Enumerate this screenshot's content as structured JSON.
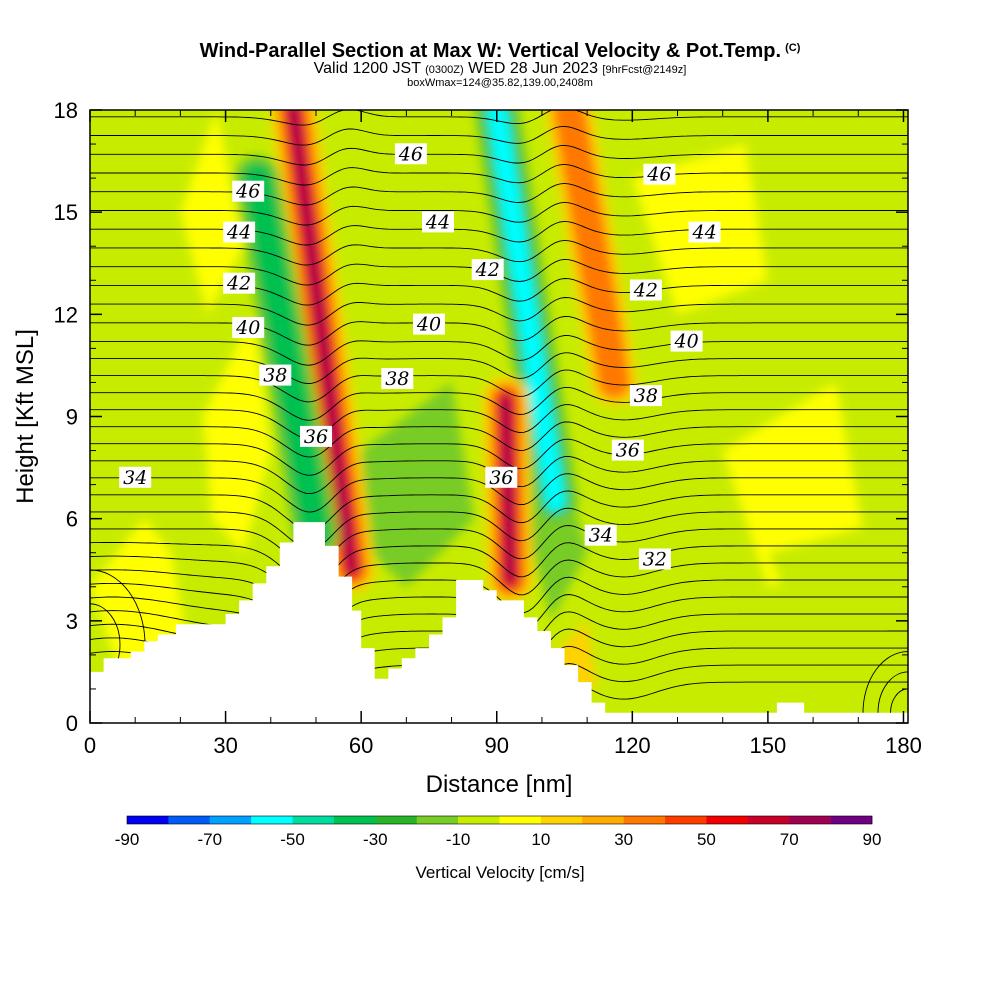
{
  "header": {
    "title": "Wind-Parallel Section at Max W: Vertical Velocity & Pot.Temp.",
    "copyright": "(C)",
    "valid_main": "Valid 1200 JST",
    "valid_utc": "(0300Z)",
    "valid_date": "WED 28 Jun 2023",
    "valid_fcst": "[9hrFcst@2149z]",
    "box_line": "boxWmax=124@35.82,139.00,2408m"
  },
  "chart_data": {
    "type": "heatmap",
    "title": "Wind-Parallel Section at Max W: Vertical Velocity & Pot.Temp.",
    "xlabel": "Distance [nm]",
    "ylabel": "Height [Kft MSL]",
    "xlim": [
      0,
      181
    ],
    "ylim": [
      0,
      18
    ],
    "x_ticks": [
      "0",
      "30",
      "60",
      "90",
      "120",
      "150",
      "180"
    ],
    "y_ticks": [
      "0",
      "3",
      "6",
      "9",
      "12",
      "15",
      "18"
    ],
    "colorbar": {
      "label": "Vertical Velocity [cm/s]",
      "tick_labels": [
        "-90",
        "-70",
        "-50",
        "-30",
        "-10",
        "10",
        "30",
        "50",
        "70",
        "90"
      ],
      "colors": [
        "#0000f0",
        "#005af5",
        "#00a0ff",
        "#00ffff",
        "#00dca0",
        "#00c050",
        "#28b428",
        "#78cc28",
        "#c8ec00",
        "#ffff00",
        "#ffd200",
        "#ffaa00",
        "#ff7800",
        "#ff3c00",
        "#f00000",
        "#c80028",
        "#a00050",
        "#6e0082"
      ]
    },
    "terrain_kft": [
      [
        0,
        1.5
      ],
      [
        3,
        1.5
      ],
      [
        3,
        1.9
      ],
      [
        9,
        1.9
      ],
      [
        9,
        2.1
      ],
      [
        12,
        2.1
      ],
      [
        12,
        2.4
      ],
      [
        15,
        2.4
      ],
      [
        15,
        2.6
      ],
      [
        19,
        2.6
      ],
      [
        19,
        2.9
      ],
      [
        30,
        2.9
      ],
      [
        30,
        3.2
      ],
      [
        33,
        3.2
      ],
      [
        33,
        3.6
      ],
      [
        36,
        3.6
      ],
      [
        36,
        4.1
      ],
      [
        39,
        4.1
      ],
      [
        39,
        4.6
      ],
      [
        42,
        4.6
      ],
      [
        42,
        5.3
      ],
      [
        45,
        5.3
      ],
      [
        45,
        5.9
      ],
      [
        52,
        5.9
      ],
      [
        52,
        5.2
      ],
      [
        55,
        5.2
      ],
      [
        55,
        4.3
      ],
      [
        58,
        4.3
      ],
      [
        58,
        3.3
      ],
      [
        60,
        3.3
      ],
      [
        60,
        2.2
      ],
      [
        63,
        2.2
      ],
      [
        63,
        1.3
      ],
      [
        66,
        1.3
      ],
      [
        66,
        1.6
      ],
      [
        69,
        1.6
      ],
      [
        69,
        1.9
      ],
      [
        72,
        1.9
      ],
      [
        72,
        2.2
      ],
      [
        75,
        2.2
      ],
      [
        75,
        2.6
      ],
      [
        78,
        2.6
      ],
      [
        78,
        3.1
      ],
      [
        81,
        3.1
      ],
      [
        81,
        4.2
      ],
      [
        87,
        4.2
      ],
      [
        87,
        3.9
      ],
      [
        90,
        3.9
      ],
      [
        90,
        3.6
      ],
      [
        96,
        3.6
      ],
      [
        96,
        3.1
      ],
      [
        99,
        3.1
      ],
      [
        99,
        2.7
      ],
      [
        102,
        2.7
      ],
      [
        102,
        2.2
      ],
      [
        105,
        2.2
      ],
      [
        105,
        1.7
      ],
      [
        108,
        1.7
      ],
      [
        108,
        1.2
      ],
      [
        111,
        1.2
      ],
      [
        111,
        0.6
      ],
      [
        114,
        0.6
      ],
      [
        114,
        0.3
      ],
      [
        152,
        0.3
      ],
      [
        152,
        0.6
      ],
      [
        158,
        0.6
      ],
      [
        158,
        0.3
      ],
      [
        181,
        0.3
      ]
    ],
    "w_features_cm_s": [
      {
        "x0": 45,
        "y0": 18,
        "x1": 58,
        "y1": 4.5,
        "w": 75
      },
      {
        "x0": 37,
        "y0": 16,
        "x1": 50,
        "y1": 5.5,
        "w": -35
      },
      {
        "x0": 90,
        "y0": 18,
        "x1": 103,
        "y1": 6.5,
        "w": -55
      },
      {
        "x0": 92,
        "y0": 9.5,
        "x1": 93,
        "y1": 4.2,
        "w": 75
      },
      {
        "x0": 106,
        "y0": 18,
        "x1": 116,
        "y1": 10,
        "w": 35
      }
    ],
    "theta_contours_C": [
      {
        "value": 32,
        "label_xy": [
          125,
          4.8
        ]
      },
      {
        "value": 34,
        "label_xy": [
          10,
          7.2
        ]
      },
      {
        "value": 34,
        "label_xy": [
          113,
          5.5
        ]
      },
      {
        "value": 36,
        "label_xy": [
          50,
          8.4
        ]
      },
      {
        "value": 36,
        "label_xy": [
          91,
          7.2
        ]
      },
      {
        "value": 36,
        "label_xy": [
          119,
          8.0
        ]
      },
      {
        "value": 38,
        "label_xy": [
          41,
          10.2
        ]
      },
      {
        "value": 38,
        "label_xy": [
          68,
          10.1
        ]
      },
      {
        "value": 38,
        "label_xy": [
          123,
          9.6
        ]
      },
      {
        "value": 40,
        "label_xy": [
          35,
          11.6
        ]
      },
      {
        "value": 40,
        "label_xy": [
          75,
          11.7
        ]
      },
      {
        "value": 40,
        "label_xy": [
          132,
          11.2
        ]
      },
      {
        "value": 42,
        "label_xy": [
          33,
          12.9
        ]
      },
      {
        "value": 42,
        "label_xy": [
          88,
          13.3
        ]
      },
      {
        "value": 42,
        "label_xy": [
          123,
          12.7
        ]
      },
      {
        "value": 44,
        "label_xy": [
          33,
          14.4
        ]
      },
      {
        "value": 44,
        "label_xy": [
          77,
          14.7
        ]
      },
      {
        "value": 44,
        "label_xy": [
          136,
          14.4
        ]
      },
      {
        "value": 46,
        "label_xy": [
          35,
          15.6
        ]
      },
      {
        "value": 46,
        "label_xy": [
          71,
          16.7
        ]
      },
      {
        "value": 46,
        "label_xy": [
          126,
          16.1
        ]
      }
    ]
  }
}
